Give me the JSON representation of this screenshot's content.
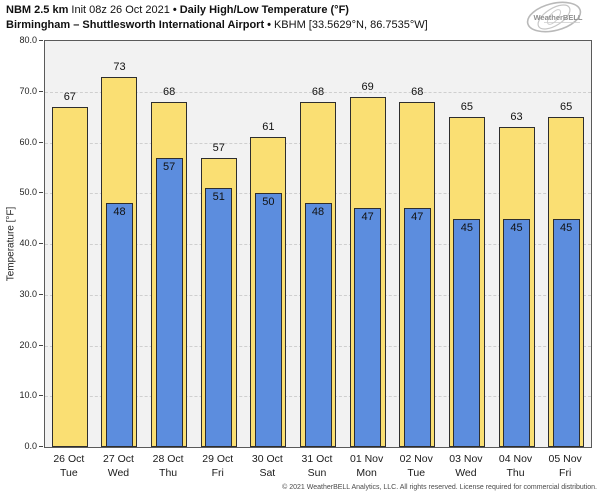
{
  "header": {
    "line1_bold1": "NBM 2.5 km",
    "line1_init": "Init 08z 26 Oct 2021",
    "line1_sep": "•",
    "line1_bold2": "Daily High/Low Temperature (°F)",
    "line2_bold": "Birmingham – Shuttlesworth International Airport",
    "line2_sep": "•",
    "line2_reg": "KBHM [33.5629°N, 86.7535°W]"
  },
  "logo": {
    "text": "WeatherBELL"
  },
  "footer": {
    "copyright": "© 2021 WeatherBELL Analytics, LLC. All rights reserved. License required for commercial distribution."
  },
  "colors": {
    "high_bar": "#FADF73",
    "low_bar": "#5C8DDE",
    "bar_border": "#2e2e2e",
    "plot_background": "#f2f2f2",
    "gridline": "#cfcfcf"
  },
  "chart_data": {
    "type": "bar",
    "title": "NBM 2.5 km Init 08z 26 Oct 2021 • Daily High/Low Temperature (°F)",
    "subtitle": "Birmingham – Shuttlesworth International Airport • KBHM [33.5629°N, 86.7535°W]",
    "categories": [
      "26 Oct",
      "27 Oct",
      "28 Oct",
      "29 Oct",
      "30 Oct",
      "31 Oct",
      "01 Nov",
      "02 Nov",
      "03 Nov",
      "04 Nov",
      "05 Nov"
    ],
    "days": [
      "Tue",
      "Wed",
      "Thu",
      "Fri",
      "Sat",
      "Sun",
      "Mon",
      "Tue",
      "Wed",
      "Thu",
      "Fri"
    ],
    "series": [
      {
        "name": "High",
        "color": "#FADF73",
        "values": [
          67,
          73,
          68,
          57,
          61,
          68,
          69,
          68,
          65,
          63,
          65
        ]
      },
      {
        "name": "Low",
        "color": "#5C8DDE",
        "values": [
          null,
          48,
          57,
          51,
          50,
          48,
          47,
          47,
          45,
          45,
          45
        ]
      }
    ],
    "xlabel": "",
    "ylabel": "Temperature [°F]",
    "ylim": [
      0,
      80
    ],
    "ytick_step": 10,
    "ytick_decimals": 1,
    "grid": "horizontal-dashed",
    "legend_position": "none"
  }
}
